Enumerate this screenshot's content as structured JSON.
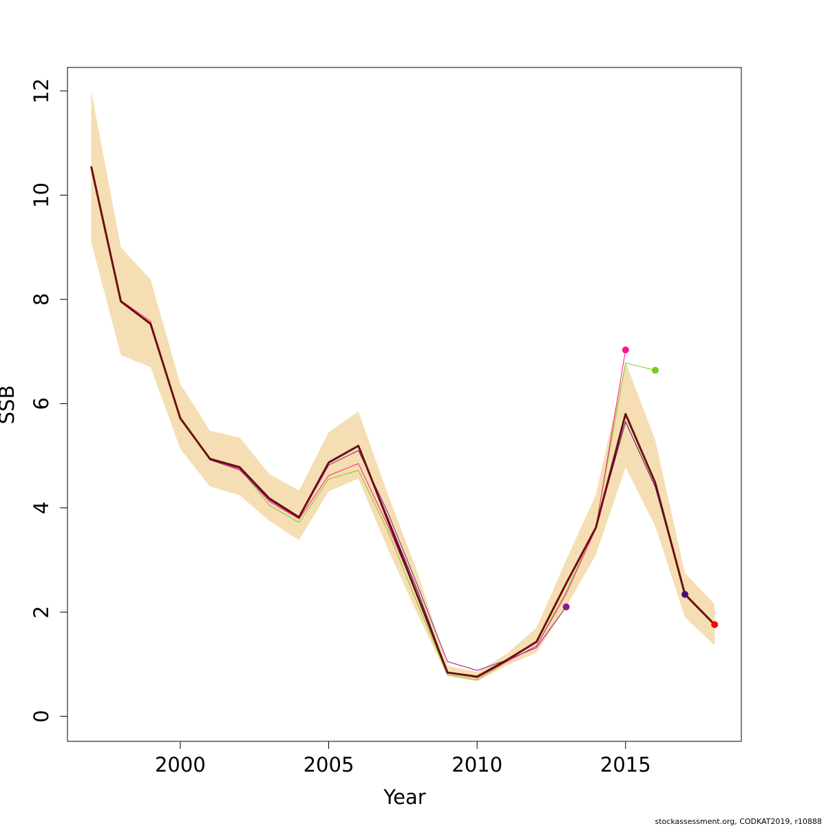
{
  "chart_data": {
    "type": "line",
    "title": "",
    "xlabel": "Year",
    "ylabel": "SSB",
    "xlim": [
      1996.2,
      2018.9
    ],
    "ylim": [
      -0.48,
      12.45
    ],
    "x_ticks": [
      2000,
      2005,
      2010,
      2015
    ],
    "y_ticks": [
      0,
      2,
      4,
      6,
      8,
      10,
      12
    ],
    "grid": false,
    "legend": "none",
    "band": {
      "color": "#f5deb3",
      "x": [
        1997,
        1998,
        1999,
        2000,
        2001,
        2002,
        2003,
        2004,
        2005,
        2006,
        2007,
        2008,
        2009,
        2010,
        2011,
        2012,
        2013,
        2014,
        2015,
        2016,
        2017,
        2018
      ],
      "upper": [
        12.0,
        9.0,
        8.38,
        6.38,
        5.48,
        5.35,
        4.65,
        4.33,
        5.45,
        5.85,
        4.25,
        2.75,
        0.97,
        0.85,
        1.2,
        1.7,
        3.0,
        4.25,
        6.8,
        5.3,
        2.75,
        2.15
      ],
      "lower": [
        9.1,
        6.93,
        6.7,
        5.13,
        4.41,
        4.24,
        3.75,
        3.38,
        4.32,
        4.56,
        3.2,
        1.95,
        0.77,
        0.67,
        0.98,
        1.22,
        2.1,
        3.1,
        4.78,
        3.65,
        1.9,
        1.36
      ]
    },
    "series": [
      {
        "color": "#7acb1c",
        "x": [
          1997,
          1998,
          1999,
          2000,
          2001,
          2002,
          2003,
          2004,
          2005,
          2006,
          2007,
          2008,
          2009,
          2010,
          2011,
          2012,
          2013,
          2014,
          2015,
          2016
        ],
        "values": [
          10.5,
          7.95,
          7.55,
          5.72,
          4.92,
          4.76,
          4.05,
          3.72,
          4.55,
          4.72,
          3.55,
          2.15,
          0.8,
          0.7,
          1.05,
          1.35,
          2.4,
          3.65,
          6.78,
          6.64
        ],
        "endpoint": true
      },
      {
        "color": "#ff1493",
        "x": [
          1997,
          1998,
          1999,
          2000,
          2001,
          2002,
          2003,
          2004,
          2005,
          2006,
          2007,
          2008,
          2009,
          2010,
          2011,
          2012,
          2013,
          2014,
          2015
        ],
        "values": [
          10.55,
          7.98,
          7.58,
          5.73,
          4.93,
          4.75,
          4.12,
          3.79,
          4.62,
          4.85,
          3.65,
          2.3,
          0.85,
          0.74,
          1.05,
          1.35,
          2.35,
          3.6,
          7.03
        ],
        "endpoint": true
      },
      {
        "color": "#8b1a89",
        "x": [
          1997,
          1998,
          1999,
          2000,
          2001,
          2002,
          2003,
          2004,
          2005,
          2006,
          2007,
          2008,
          2009,
          2010,
          2011,
          2012,
          2013
        ],
        "values": [
          10.52,
          7.97,
          7.55,
          5.72,
          4.92,
          4.73,
          4.15,
          3.8,
          4.82,
          5.1,
          3.9,
          2.5,
          1.05,
          0.88,
          1.08,
          1.32,
          2.1
        ],
        "endpoint": true
      },
      {
        "color": "#4b0f70",
        "x": [
          1997,
          1998,
          1999,
          2000,
          2001,
          2002,
          2003,
          2004,
          2005,
          2006,
          2007,
          2008,
          2009,
          2010,
          2011,
          2012,
          2013,
          2014,
          2015,
          2016,
          2017
        ],
        "values": [
          10.55,
          7.96,
          7.53,
          5.72,
          4.94,
          4.78,
          4.18,
          3.82,
          4.87,
          5.18,
          3.8,
          2.4,
          0.85,
          0.76,
          1.08,
          1.42,
          2.55,
          3.62,
          5.65,
          4.4,
          2.34
        ],
        "endpoint": true
      },
      {
        "color": "#ff0000",
        "x": [
          1997,
          1998,
          1999,
          2000,
          2001,
          2002,
          2003,
          2004,
          2005,
          2006,
          2007,
          2008,
          2009,
          2010,
          2011,
          2012,
          2013,
          2014,
          2015,
          2016,
          2017,
          2018
        ],
        "values": [
          10.55,
          7.96,
          7.53,
          5.72,
          4.94,
          4.78,
          4.18,
          3.82,
          4.87,
          5.19,
          3.75,
          2.3,
          0.84,
          0.76,
          1.08,
          1.43,
          2.55,
          3.62,
          5.8,
          4.48,
          2.34,
          1.76
        ],
        "endpoint": true
      },
      {
        "color": "#6b0f0f",
        "x": [
          1997,
          1998,
          1999,
          2000,
          2001,
          2002,
          2003,
          2004,
          2005,
          2006,
          2007,
          2008,
          2009,
          2010,
          2011,
          2012,
          2013,
          2014,
          2015,
          2016,
          2017,
          2018
        ],
        "values": [
          10.55,
          7.96,
          7.53,
          5.72,
          4.94,
          4.78,
          4.18,
          3.82,
          4.87,
          5.19,
          3.75,
          2.3,
          0.84,
          0.76,
          1.08,
          1.43,
          2.55,
          3.62,
          5.8,
          4.48,
          2.34,
          1.76
        ],
        "endpoint": false,
        "thick": true
      }
    ]
  },
  "footer": {
    "text": "stockassessment.org, CODKAT2019, r10888"
  }
}
